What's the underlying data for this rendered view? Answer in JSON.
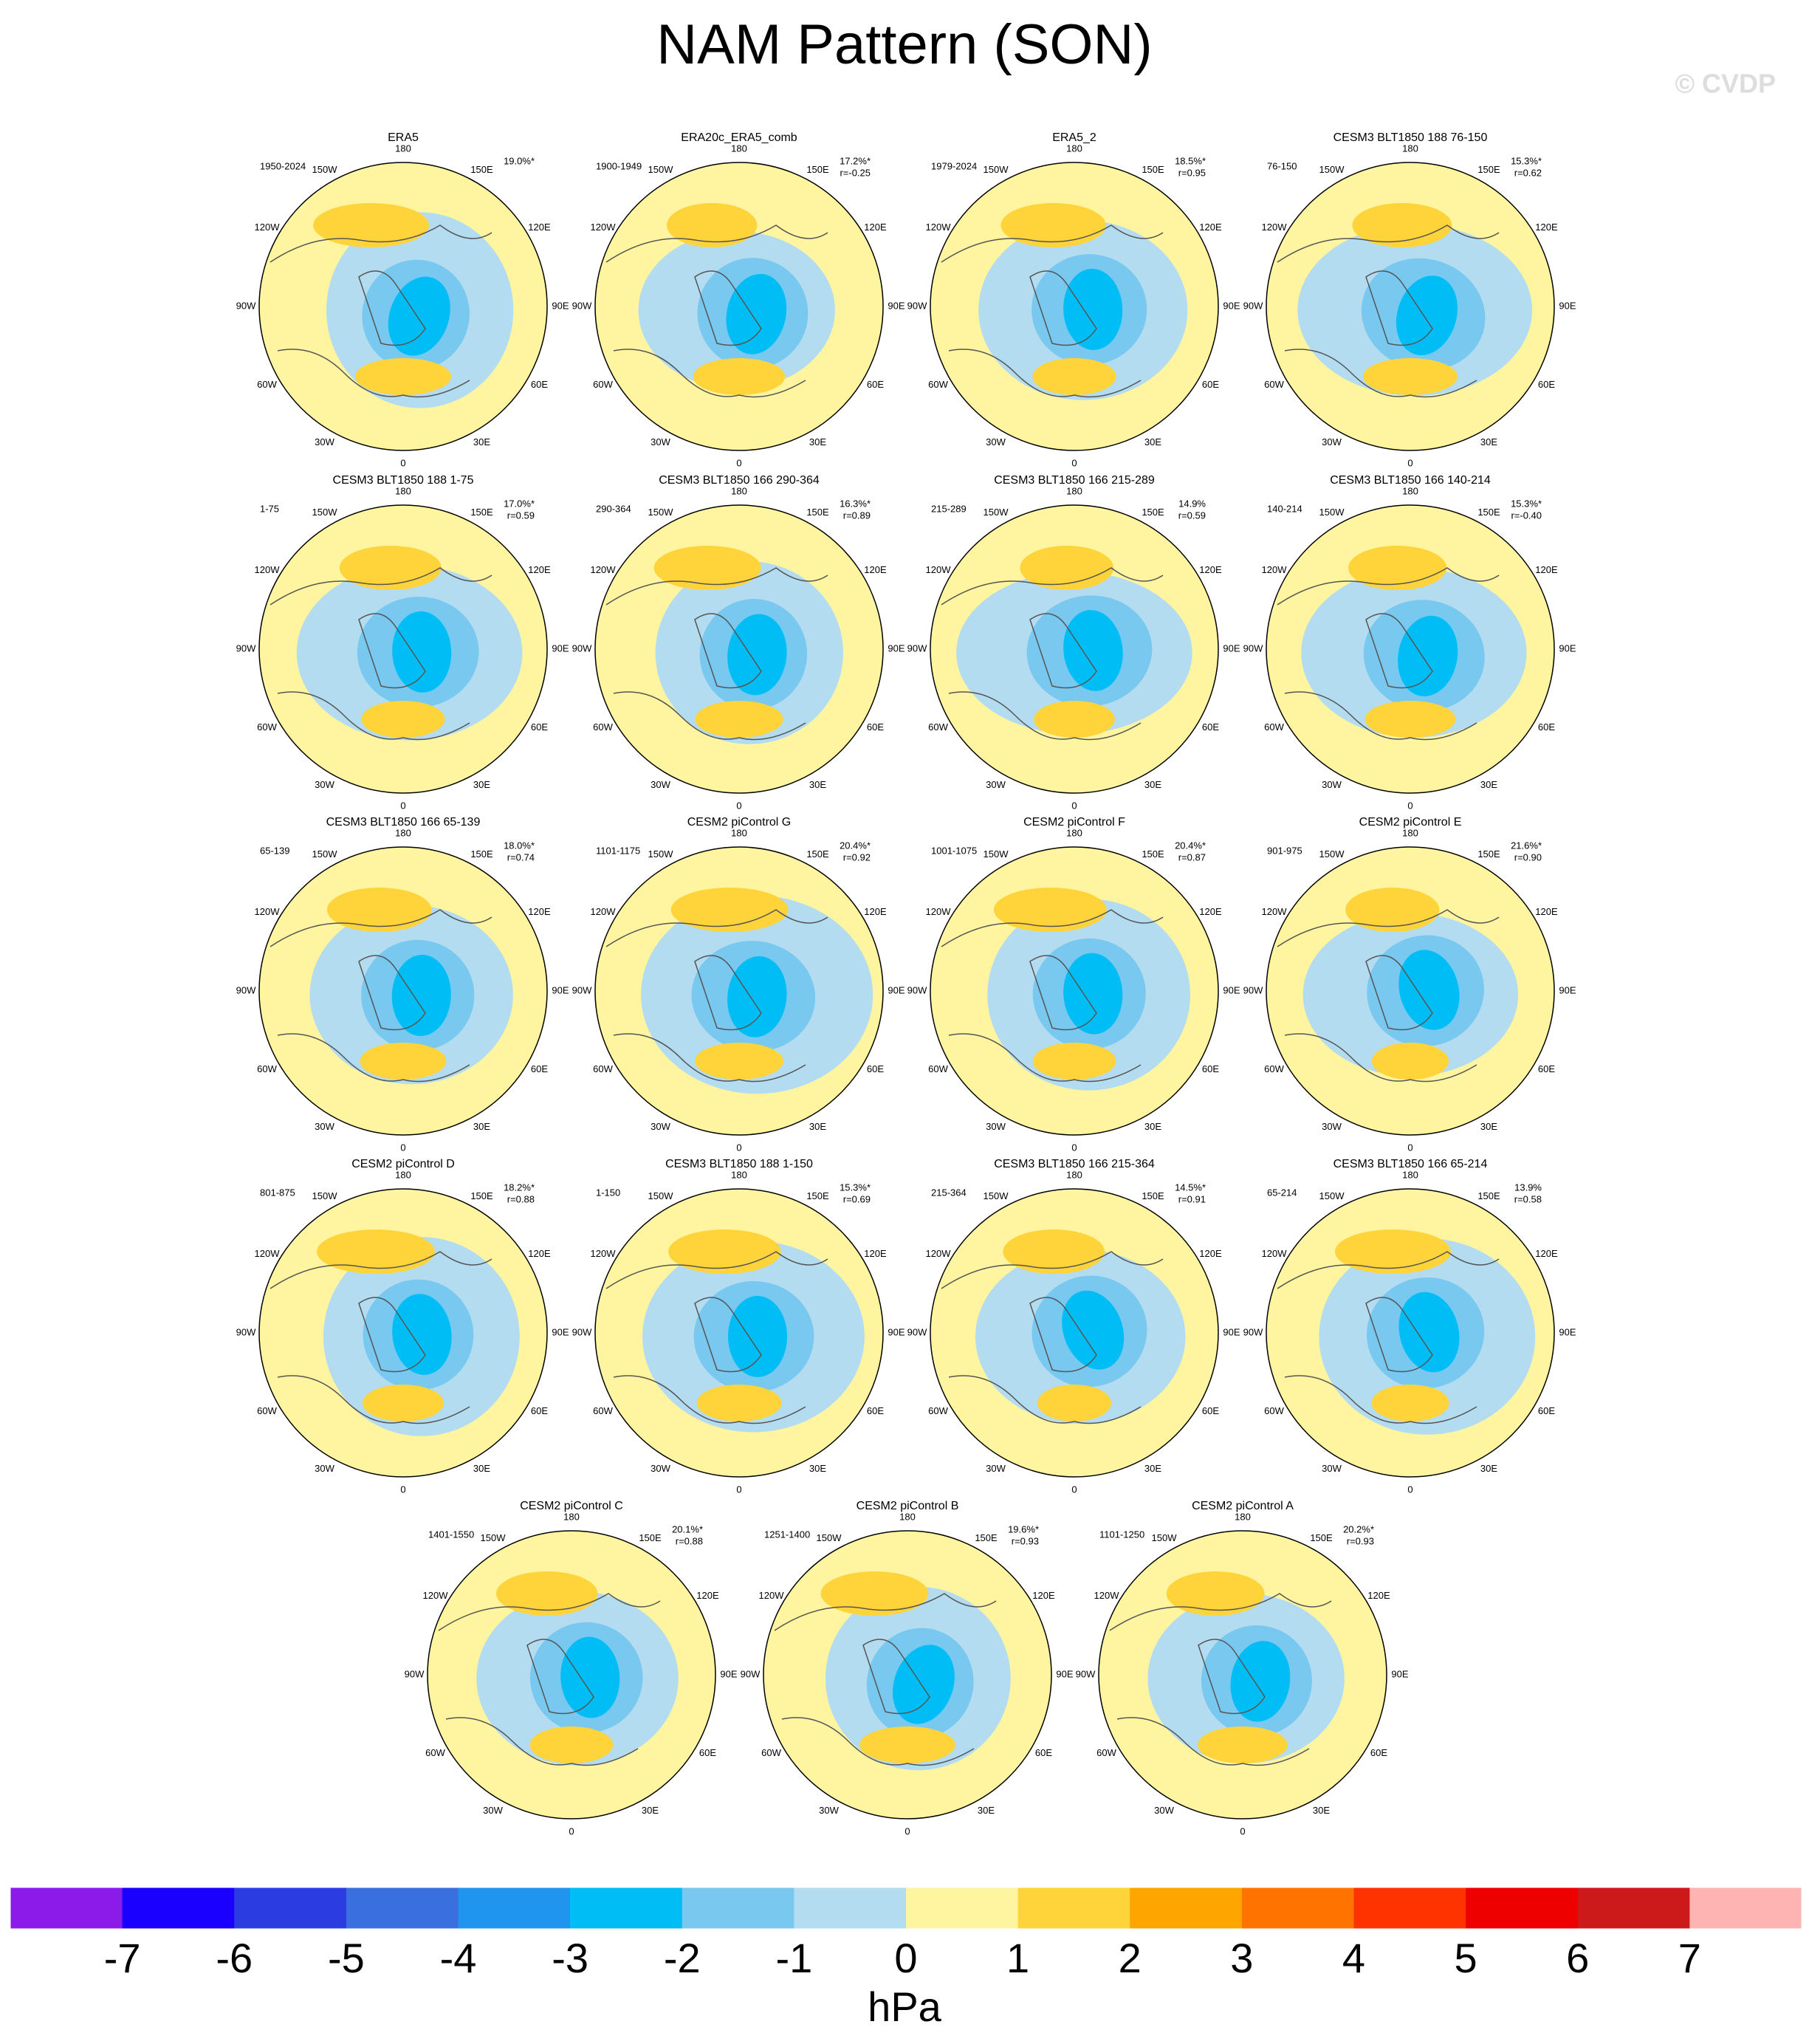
{
  "title": "NAM Pattern (SON)",
  "watermark": "© CVDP",
  "lon_labels": {
    "top": "180",
    "p150w": "150W",
    "p150e": "150E",
    "p120w": "120W",
    "p120e": "120E",
    "p90w": "90W",
    "p90e": "90E",
    "p60w": "60W",
    "p60e": "60E",
    "p30w": "30W",
    "p30e": "30E",
    "bottom": "0"
  },
  "panels": [
    {
      "title": "ERA5",
      "period": "1950-2024",
      "percent": "19.0%*"
    },
    {
      "title": "ERA20c_ERA5_comb",
      "period": "1900-1949",
      "percent": "17.2%*",
      "r": "r=-0.25"
    },
    {
      "title": "ERA5_2",
      "period": "1979-2024",
      "percent": "18.5%*",
      "r": "r=0.95"
    },
    {
      "title": "CESM3 BLT1850 188 76-150",
      "period": "76-150",
      "percent": "15.3%*",
      "r": "r=0.62"
    },
    {
      "title": "CESM3 BLT1850 188 1-75",
      "period": "1-75",
      "percent": "17.0%*",
      "r": "r=0.59"
    },
    {
      "title": "CESM3 BLT1850 166 290-364",
      "period": "290-364",
      "percent": "16.3%*",
      "r": "r=0.89"
    },
    {
      "title": "CESM3 BLT1850 166 215-289",
      "period": "215-289",
      "percent": "14.9%",
      "r": "r=0.59"
    },
    {
      "title": "CESM3 BLT1850 166 140-214",
      "period": "140-214",
      "percent": "15.3%*",
      "r": "r=-0.40"
    },
    {
      "title": "CESM3 BLT1850 166 65-139",
      "period": "65-139",
      "percent": "18.0%*",
      "r": "r=0.74"
    },
    {
      "title": "CESM2 piControl G",
      "period": "1101-1175",
      "percent": "20.4%*",
      "r": "r=0.92"
    },
    {
      "title": "CESM2 piControl F",
      "period": "1001-1075",
      "percent": "20.4%*",
      "r": "r=0.87"
    },
    {
      "title": "CESM2 piControl E",
      "period": "901-975",
      "percent": "21.6%*",
      "r": "r=0.90"
    },
    {
      "title": "CESM2 piControl D",
      "period": "801-875",
      "percent": "18.2%*",
      "r": "r=0.88"
    },
    {
      "title": "CESM3 BLT1850 188 1-150",
      "period": "1-150",
      "percent": "15.3%*",
      "r": "r=0.69"
    },
    {
      "title": "CESM3 BLT1850 166 215-364",
      "period": "215-364",
      "percent": "14.5%*",
      "r": "r=0.91"
    },
    {
      "title": "CESM3 BLT1850 166 65-214",
      "period": "65-214",
      "percent": "13.9%",
      "r": "r=0.58"
    },
    {
      "title": "CESM2 piControl C",
      "period": "1401-1550",
      "percent": "20.1%*",
      "r": "r=0.88"
    },
    {
      "title": "CESM2 piControl B",
      "period": "1251-1400",
      "percent": "19.6%*",
      "r": "r=0.93"
    },
    {
      "title": "CESM2 piControl A",
      "period": "1101-1250",
      "percent": "20.2%*",
      "r": "r=0.93"
    }
  ],
  "colorbar": {
    "colors": [
      "#8c1ae8",
      "#1a00ff",
      "#2b3de0",
      "#3a6fe0",
      "#1f95f0",
      "#00bef5",
      "#78c8f0",
      "#b4dcf0",
      "#fff5a0",
      "#ffd43a",
      "#ffa500",
      "#ff7300",
      "#ff3300",
      "#ee0000",
      "#cc1a1a",
      "#ffb4b4"
    ],
    "ticks": [
      -7,
      -6,
      -5,
      -4,
      -3,
      -2,
      -1,
      0,
      1,
      2,
      3,
      4,
      5,
      6,
      7
    ],
    "label": "hPa"
  }
}
